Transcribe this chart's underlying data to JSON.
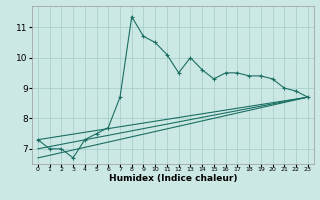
{
  "xlabel": "Humidex (Indice chaleur)",
  "ylabel": "",
  "bg_color": "#cce8e4",
  "line_color": "#1a6e62",
  "grid_color": "#aacfcb",
  "xlim": [
    -0.5,
    23.5
  ],
  "ylim": [
    6.5,
    11.7
  ],
  "yticks": [
    7,
    8,
    9,
    10,
    11
  ],
  "xticks": [
    0,
    1,
    2,
    3,
    4,
    5,
    6,
    7,
    8,
    9,
    10,
    11,
    12,
    13,
    14,
    15,
    16,
    17,
    18,
    19,
    20,
    21,
    22,
    23
  ],
  "xlabels": [
    "0",
    "1",
    "2",
    "3",
    "4",
    "5",
    "6",
    "7",
    "8",
    "9",
    "10",
    "11",
    "12",
    "13",
    "14",
    "15",
    "16",
    "17",
    "18",
    "19",
    "20",
    "21",
    "22",
    "23"
  ],
  "series1_x": [
    0,
    1,
    2,
    3,
    4,
    5,
    6,
    7,
    8,
    9,
    10,
    11,
    12,
    13,
    14,
    15,
    16,
    17,
    18,
    19,
    20,
    21,
    22,
    23
  ],
  "series1_y": [
    7.3,
    7.0,
    7.0,
    6.7,
    7.3,
    7.5,
    7.7,
    8.7,
    11.35,
    10.7,
    10.5,
    10.1,
    9.5,
    10.0,
    9.6,
    9.3,
    9.5,
    9.5,
    9.4,
    9.4,
    9.3,
    9.0,
    8.9,
    8.7
  ],
  "series2_x": [
    0,
    23
  ],
  "series2_y": [
    7.3,
    8.7
  ],
  "series3_x": [
    0,
    23
  ],
  "series3_y": [
    7.0,
    8.7
  ],
  "series4_x": [
    0,
    23
  ],
  "series4_y": [
    6.7,
    8.7
  ]
}
